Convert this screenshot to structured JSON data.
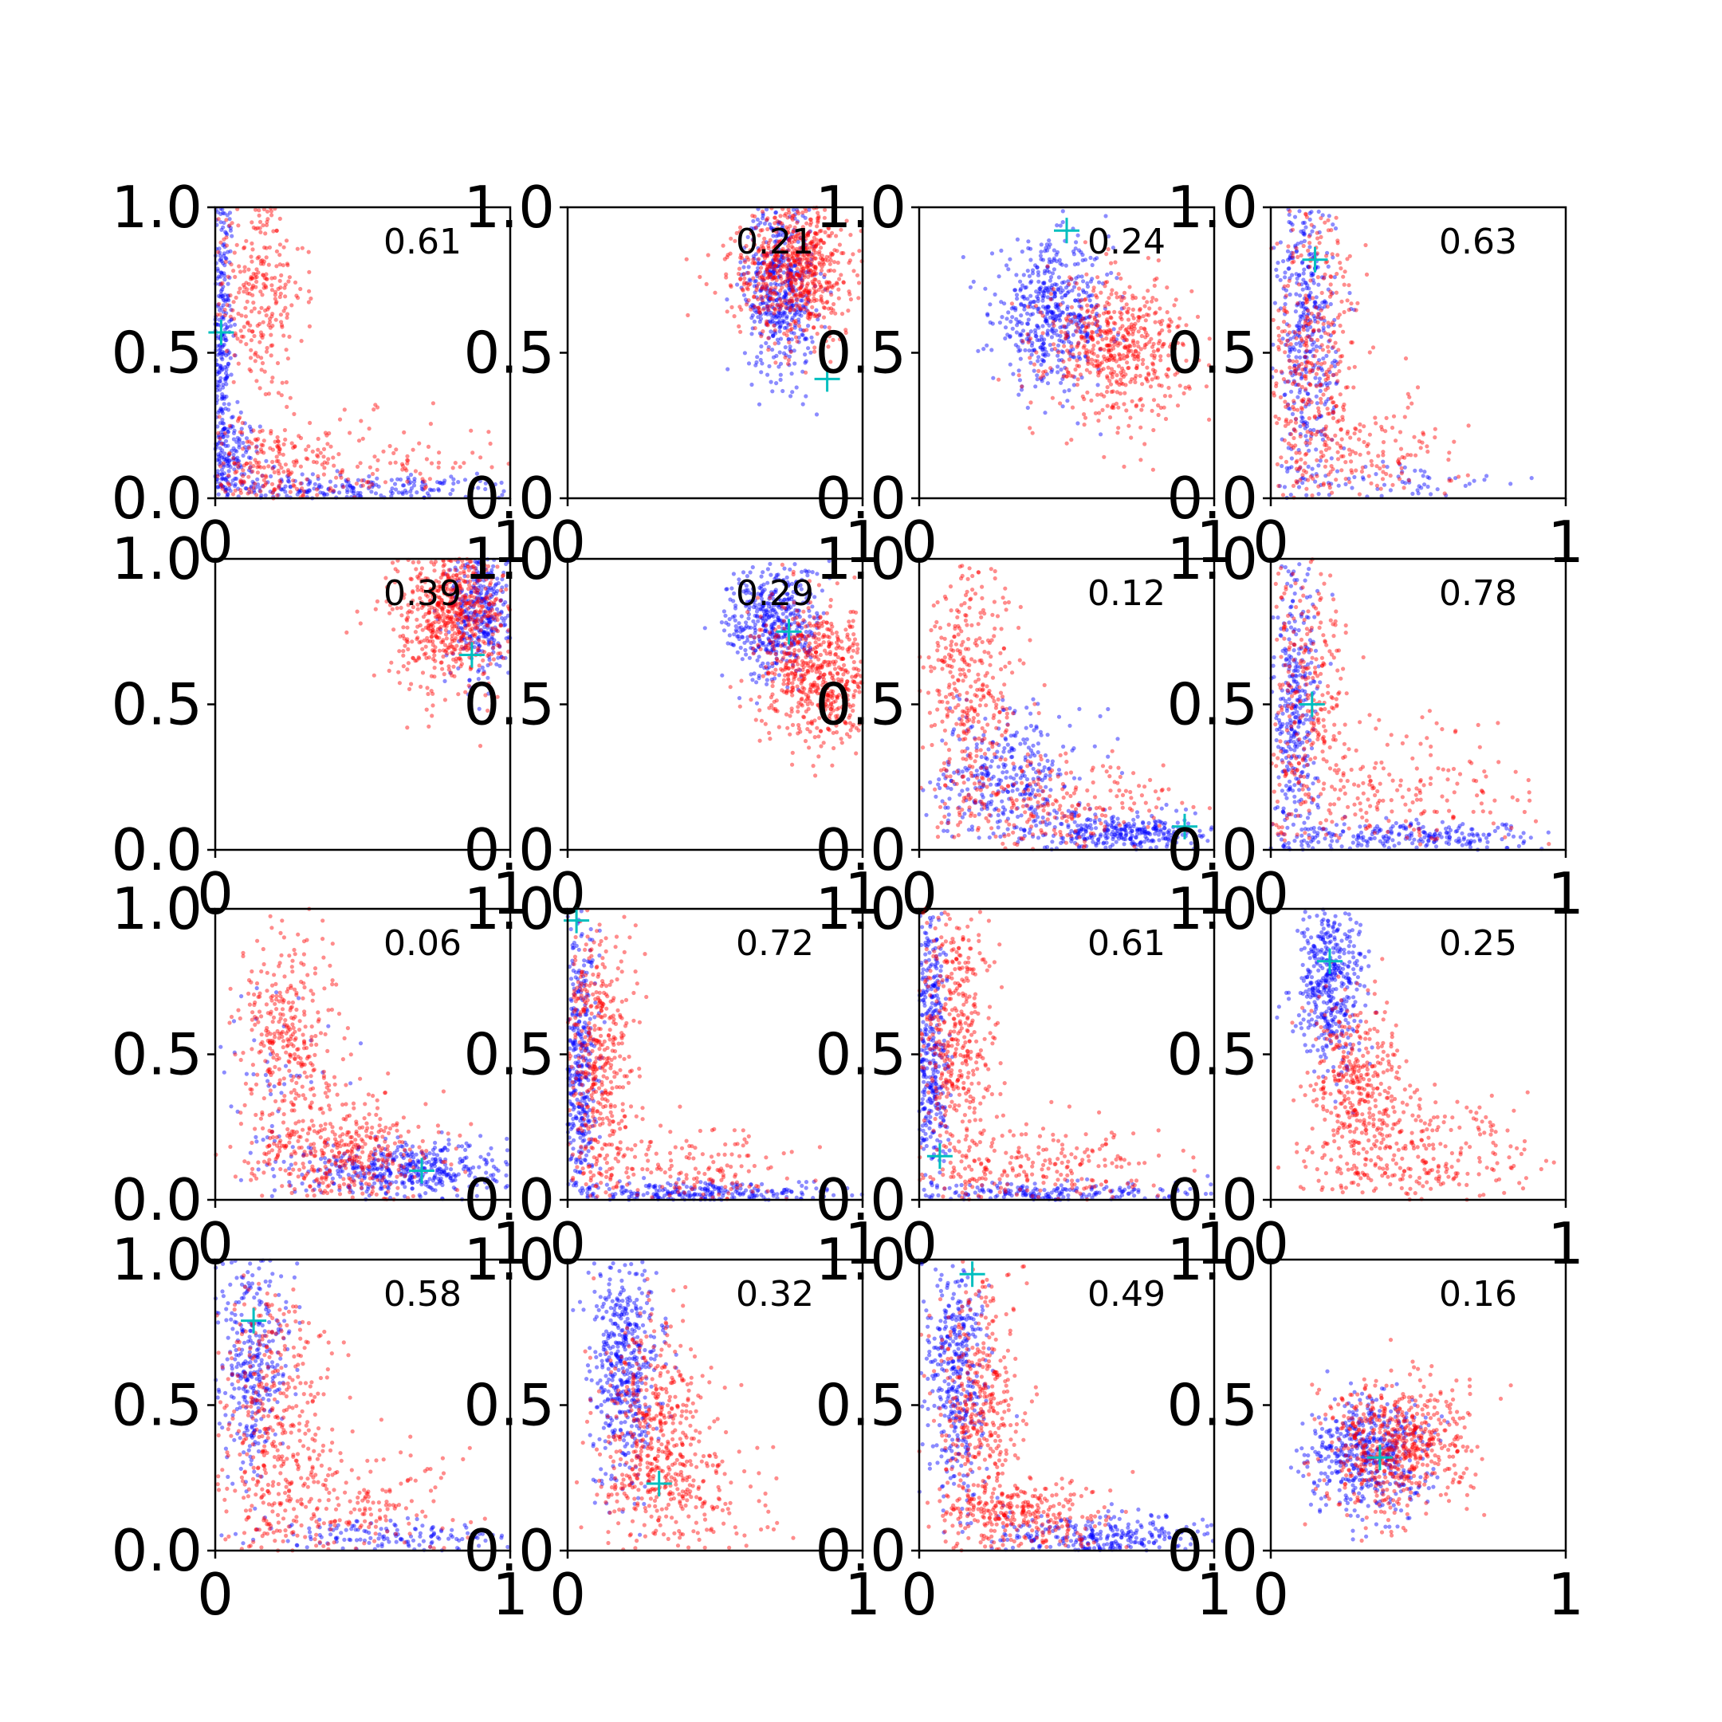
{
  "figure": {
    "background": "#ffffff",
    "rows": 4,
    "cols": 4
  },
  "colors": {
    "series_a": "#0000ff",
    "series_b": "#ff0000",
    "marker": "#00bfbf",
    "axis": "#000000"
  },
  "chart_data": [
    {
      "type": "scatter",
      "annotation": "0.61",
      "xlim": [
        0,
        1
      ],
      "ylim": [
        0,
        1
      ],
      "x_tick_labels": [
        "0",
        "1"
      ],
      "y_tick_labels": [
        "0.0",
        "0.5",
        "1.0"
      ],
      "marker_point": [
        0.02,
        0.57
      ],
      "series": [
        {
          "color": "#0000ff",
          "clusters": [
            {
              "n": 320,
              "cx": 0.02,
              "cy": 0.55,
              "sx": 0.02,
              "sy": 0.3
            },
            {
              "n": 260,
              "cx": 0.45,
              "cy": 0.03,
              "sx": 0.3,
              "sy": 0.025
            },
            {
              "n": 160,
              "cx": 0.05,
              "cy": 0.12,
              "sx": 0.05,
              "sy": 0.08
            }
          ]
        },
        {
          "color": "#ff0000",
          "clusters": [
            {
              "n": 300,
              "cx": 0.14,
              "cy": 0.72,
              "sx": 0.08,
              "sy": 0.2
            },
            {
              "n": 200,
              "cx": 0.15,
              "cy": 0.1,
              "sx": 0.12,
              "sy": 0.08
            },
            {
              "n": 140,
              "cx": 0.5,
              "cy": 0.12,
              "sx": 0.22,
              "sy": 0.08
            }
          ]
        }
      ]
    },
    {
      "type": "scatter",
      "annotation": "0.21",
      "xlim": [
        0,
        1
      ],
      "ylim": [
        0,
        1
      ],
      "x_tick_labels": [
        "0",
        "1"
      ],
      "y_tick_labels": [
        "0.0",
        "0.5",
        "1.0"
      ],
      "marker_point": [
        0.88,
        0.41
      ],
      "series": [
        {
          "color": "#0000ff",
          "clusters": [
            {
              "n": 500,
              "cx": 0.72,
              "cy": 0.72,
              "sx": 0.06,
              "sy": 0.15
            }
          ]
        },
        {
          "color": "#ff0000",
          "clusters": [
            {
              "n": 550,
              "cx": 0.8,
              "cy": 0.78,
              "sx": 0.08,
              "sy": 0.12
            },
            {
              "n": 150,
              "cx": 0.65,
              "cy": 0.8,
              "sx": 0.08,
              "sy": 0.1
            }
          ]
        }
      ]
    },
    {
      "type": "scatter",
      "annotation": "0.24",
      "xlim": [
        0,
        1
      ],
      "ylim": [
        0,
        1
      ],
      "x_tick_labels": [
        "0",
        "1"
      ],
      "y_tick_labels": [
        "0.0",
        "0.5",
        "1.0"
      ],
      "marker_point": [
        0.5,
        0.92
      ],
      "series": [
        {
          "color": "#0000ff",
          "clusters": [
            {
              "n": 500,
              "cx": 0.45,
              "cy": 0.63,
              "sx": 0.1,
              "sy": 0.12
            }
          ]
        },
        {
          "color": "#ff0000",
          "clusters": [
            {
              "n": 550,
              "cx": 0.67,
              "cy": 0.52,
              "sx": 0.12,
              "sy": 0.12
            }
          ]
        }
      ]
    },
    {
      "type": "scatter",
      "annotation": "0.63",
      "xlim": [
        0,
        1
      ],
      "ylim": [
        0,
        1
      ],
      "x_tick_labels": [
        "0",
        "1"
      ],
      "y_tick_labels": [
        "0.0",
        "0.5",
        "1.0"
      ],
      "marker_point": [
        0.15,
        0.82
      ],
      "series": [
        {
          "color": "#0000ff",
          "clusters": [
            {
              "n": 420,
              "cx": 0.12,
              "cy": 0.55,
              "sx": 0.05,
              "sy": 0.28
            },
            {
              "n": 60,
              "cx": 0.45,
              "cy": 0.05,
              "sx": 0.18,
              "sy": 0.04
            }
          ]
        },
        {
          "color": "#ff0000",
          "clusters": [
            {
              "n": 420,
              "cx": 0.15,
              "cy": 0.45,
              "sx": 0.08,
              "sy": 0.28
            },
            {
              "n": 120,
              "cx": 0.35,
              "cy": 0.15,
              "sx": 0.15,
              "sy": 0.1
            }
          ]
        }
      ]
    },
    {
      "type": "scatter",
      "annotation": "0.39",
      "xlim": [
        0,
        1
      ],
      "ylim": [
        0,
        1
      ],
      "x_tick_labels": [
        "0",
        "1"
      ],
      "y_tick_labels": [
        "0.0",
        "0.5",
        "1.0"
      ],
      "marker_point": [
        0.87,
        0.67
      ],
      "series": [
        {
          "color": "#0000ff",
          "clusters": [
            {
              "n": 350,
              "cx": 0.9,
              "cy": 0.82,
              "sx": 0.05,
              "sy": 0.12
            }
          ]
        },
        {
          "color": "#ff0000",
          "clusters": [
            {
              "n": 500,
              "cx": 0.8,
              "cy": 0.85,
              "sx": 0.09,
              "sy": 0.1
            },
            {
              "n": 150,
              "cx": 0.78,
              "cy": 0.7,
              "sx": 0.12,
              "sy": 0.1
            }
          ]
        }
      ]
    },
    {
      "type": "scatter",
      "annotation": "0.29",
      "xlim": [
        0,
        1
      ],
      "ylim": [
        0,
        1
      ],
      "x_tick_labels": [
        "0",
        "1"
      ],
      "y_tick_labels": [
        "0.0",
        "0.5",
        "1.0"
      ],
      "marker_point": [
        0.75,
        0.75
      ],
      "series": [
        {
          "color": "#0000ff",
          "clusters": [
            {
              "n": 450,
              "cx": 0.7,
              "cy": 0.78,
              "sx": 0.08,
              "sy": 0.1
            }
          ]
        },
        {
          "color": "#ff0000",
          "clusters": [
            {
              "n": 600,
              "cx": 0.85,
              "cy": 0.6,
              "sx": 0.1,
              "sy": 0.12
            }
          ]
        }
      ]
    },
    {
      "type": "scatter",
      "annotation": "0.12",
      "xlim": [
        0,
        1
      ],
      "ylim": [
        0,
        1
      ],
      "x_tick_labels": [
        "0",
        "1"
      ],
      "y_tick_labels": [
        "0.0",
        "0.5",
        "1.0"
      ],
      "marker_point": [
        0.9,
        0.08
      ],
      "series": [
        {
          "color": "#0000ff",
          "clusters": [
            {
              "n": 350,
              "cx": 0.3,
              "cy": 0.25,
              "sx": 0.12,
              "sy": 0.12
            },
            {
              "n": 300,
              "cx": 0.7,
              "cy": 0.06,
              "sx": 0.15,
              "sy": 0.03
            }
          ]
        },
        {
          "color": "#ff0000",
          "clusters": [
            {
              "n": 350,
              "cx": 0.18,
              "cy": 0.55,
              "sx": 0.08,
              "sy": 0.22
            },
            {
              "n": 250,
              "cx": 0.45,
              "cy": 0.15,
              "sx": 0.2,
              "sy": 0.1
            }
          ]
        }
      ]
    },
    {
      "type": "scatter",
      "annotation": "0.78",
      "xlim": [
        0,
        1
      ],
      "ylim": [
        0,
        1
      ],
      "x_tick_labels": [
        "0",
        "1"
      ],
      "y_tick_labels": [
        "0.0",
        "0.5",
        "1.0"
      ],
      "marker_point": [
        0.14,
        0.5
      ],
      "series": [
        {
          "color": "#0000ff",
          "clusters": [
            {
              "n": 350,
              "cx": 0.08,
              "cy": 0.45,
              "sx": 0.04,
              "sy": 0.25
            },
            {
              "n": 250,
              "cx": 0.5,
              "cy": 0.04,
              "sx": 0.25,
              "sy": 0.025
            }
          ]
        },
        {
          "color": "#ff0000",
          "clusters": [
            {
              "n": 300,
              "cx": 0.12,
              "cy": 0.55,
              "sx": 0.07,
              "sy": 0.25
            },
            {
              "n": 200,
              "cx": 0.45,
              "cy": 0.2,
              "sx": 0.22,
              "sy": 0.12
            }
          ]
        }
      ]
    },
    {
      "type": "scatter",
      "annotation": "0.06",
      "xlim": [
        0,
        1
      ],
      "ylim": [
        0,
        1
      ],
      "x_tick_labels": [
        "0",
        "1"
      ],
      "y_tick_labels": [
        "0.0",
        "0.5",
        "1.0"
      ],
      "marker_point": [
        0.7,
        0.1
      ],
      "series": [
        {
          "color": "#0000ff",
          "clusters": [
            {
              "n": 450,
              "cx": 0.65,
              "cy": 0.1,
              "sx": 0.18,
              "sy": 0.05
            },
            {
              "n": 50,
              "cx": 0.2,
              "cy": 0.4,
              "sx": 0.1,
              "sy": 0.2
            }
          ]
        },
        {
          "color": "#ff0000",
          "clusters": [
            {
              "n": 350,
              "cx": 0.25,
              "cy": 0.55,
              "sx": 0.08,
              "sy": 0.2
            },
            {
              "n": 400,
              "cx": 0.45,
              "cy": 0.15,
              "sx": 0.15,
              "sy": 0.1
            }
          ]
        }
      ]
    },
    {
      "type": "scatter",
      "annotation": "0.72",
      "xlim": [
        0,
        1
      ],
      "ylim": [
        0,
        1
      ],
      "x_tick_labels": [
        "0",
        "1"
      ],
      "y_tick_labels": [
        "0.0",
        "0.5",
        "1.0"
      ],
      "marker_point": [
        0.03,
        0.96
      ],
      "series": [
        {
          "color": "#0000ff",
          "clusters": [
            {
              "n": 400,
              "cx": 0.04,
              "cy": 0.45,
              "sx": 0.03,
              "sy": 0.25
            },
            {
              "n": 300,
              "cx": 0.45,
              "cy": 0.02,
              "sx": 0.25,
              "sy": 0.02
            }
          ]
        },
        {
          "color": "#ff0000",
          "clusters": [
            {
              "n": 450,
              "cx": 0.1,
              "cy": 0.5,
              "sx": 0.06,
              "sy": 0.25
            },
            {
              "n": 200,
              "cx": 0.4,
              "cy": 0.1,
              "sx": 0.2,
              "sy": 0.08
            }
          ]
        }
      ]
    },
    {
      "type": "scatter",
      "annotation": "0.61",
      "xlim": [
        0,
        1
      ],
      "ylim": [
        0,
        1
      ],
      "x_tick_labels": [
        "0",
        "1"
      ],
      "y_tick_labels": [
        "0.0",
        "0.5",
        "1.0"
      ],
      "marker_point": [
        0.07,
        0.15
      ],
      "series": [
        {
          "color": "#0000ff",
          "clusters": [
            {
              "n": 400,
              "cx": 0.04,
              "cy": 0.5,
              "sx": 0.03,
              "sy": 0.27
            },
            {
              "n": 200,
              "cx": 0.45,
              "cy": 0.02,
              "sx": 0.25,
              "sy": 0.02
            }
          ]
        },
        {
          "color": "#ff0000",
          "clusters": [
            {
              "n": 450,
              "cx": 0.12,
              "cy": 0.55,
              "sx": 0.07,
              "sy": 0.25
            },
            {
              "n": 250,
              "cx": 0.4,
              "cy": 0.1,
              "sx": 0.22,
              "sy": 0.08
            }
          ]
        }
      ]
    },
    {
      "type": "scatter",
      "annotation": "0.25",
      "xlim": [
        0,
        1
      ],
      "ylim": [
        0,
        1
      ],
      "x_tick_labels": [
        "0",
        "1"
      ],
      "y_tick_labels": [
        "0.0",
        "0.5",
        "1.0"
      ],
      "marker_point": [
        0.2,
        0.82
      ],
      "series": [
        {
          "color": "#0000ff",
          "clusters": [
            {
              "n": 450,
              "cx": 0.2,
              "cy": 0.75,
              "sx": 0.06,
              "sy": 0.15
            }
          ]
        },
        {
          "color": "#ff0000",
          "clusters": [
            {
              "n": 350,
              "cx": 0.3,
              "cy": 0.4,
              "sx": 0.08,
              "sy": 0.15
            },
            {
              "n": 300,
              "cx": 0.5,
              "cy": 0.15,
              "sx": 0.2,
              "sy": 0.1
            }
          ]
        }
      ]
    },
    {
      "type": "scatter",
      "annotation": "0.58",
      "xlim": [
        0,
        1
      ],
      "ylim": [
        0,
        1
      ],
      "x_tick_labels": [
        "0",
        "1"
      ],
      "y_tick_labels": [
        "0.0",
        "0.5",
        "1.0"
      ],
      "marker_point": [
        0.13,
        0.79
      ],
      "series": [
        {
          "color": "#0000ff",
          "clusters": [
            {
              "n": 350,
              "cx": 0.12,
              "cy": 0.65,
              "sx": 0.06,
              "sy": 0.2
            },
            {
              "n": 150,
              "cx": 0.6,
              "cy": 0.05,
              "sx": 0.25,
              "sy": 0.03
            }
          ]
        },
        {
          "color": "#ff0000",
          "clusters": [
            {
              "n": 400,
              "cx": 0.2,
              "cy": 0.45,
              "sx": 0.1,
              "sy": 0.25
            },
            {
              "n": 200,
              "cx": 0.45,
              "cy": 0.15,
              "sx": 0.2,
              "sy": 0.1
            }
          ]
        }
      ]
    },
    {
      "type": "scatter",
      "annotation": "0.32",
      "xlim": [
        0,
        1
      ],
      "ylim": [
        0,
        1
      ],
      "x_tick_labels": [
        "0",
        "1"
      ],
      "y_tick_labels": [
        "0.0",
        "0.5",
        "1.0"
      ],
      "marker_point": [
        0.31,
        0.23
      ],
      "series": [
        {
          "color": "#0000ff",
          "clusters": [
            {
              "n": 500,
              "cx": 0.2,
              "cy": 0.65,
              "sx": 0.06,
              "sy": 0.2
            }
          ]
        },
        {
          "color": "#ff0000",
          "clusters": [
            {
              "n": 450,
              "cx": 0.28,
              "cy": 0.4,
              "sx": 0.09,
              "sy": 0.2
            },
            {
              "n": 150,
              "cx": 0.45,
              "cy": 0.2,
              "sx": 0.15,
              "sy": 0.1
            }
          ]
        }
      ]
    },
    {
      "type": "scatter",
      "annotation": "0.49",
      "xlim": [
        0,
        1
      ],
      "ylim": [
        0,
        1
      ],
      "x_tick_labels": [
        "0",
        "1"
      ],
      "y_tick_labels": [
        "0.0",
        "0.5",
        "1.0"
      ],
      "marker_point": [
        0.18,
        0.95
      ],
      "series": [
        {
          "color": "#0000ff",
          "clusters": [
            {
              "n": 400,
              "cx": 0.12,
              "cy": 0.6,
              "sx": 0.05,
              "sy": 0.22
            },
            {
              "n": 300,
              "cx": 0.6,
              "cy": 0.05,
              "sx": 0.2,
              "sy": 0.04
            }
          ]
        },
        {
          "color": "#ff0000",
          "clusters": [
            {
              "n": 400,
              "cx": 0.2,
              "cy": 0.5,
              "sx": 0.07,
              "sy": 0.25
            },
            {
              "n": 300,
              "cx": 0.35,
              "cy": 0.12,
              "sx": 0.15,
              "sy": 0.06
            }
          ]
        }
      ]
    },
    {
      "type": "scatter",
      "annotation": "0.16",
      "xlim": [
        0,
        1
      ],
      "ylim": [
        0,
        1
      ],
      "x_tick_labels": [
        "0",
        "1"
      ],
      "y_tick_labels": [
        "0.0",
        "0.5",
        "1.0"
      ],
      "marker_point": [
        0.37,
        0.32
      ],
      "series": [
        {
          "color": "#0000ff",
          "clusters": [
            {
              "n": 500,
              "cx": 0.33,
              "cy": 0.32,
              "sx": 0.1,
              "sy": 0.1
            }
          ]
        },
        {
          "color": "#ff0000",
          "clusters": [
            {
              "n": 600,
              "cx": 0.42,
              "cy": 0.35,
              "sx": 0.12,
              "sy": 0.12
            }
          ]
        }
      ]
    }
  ]
}
